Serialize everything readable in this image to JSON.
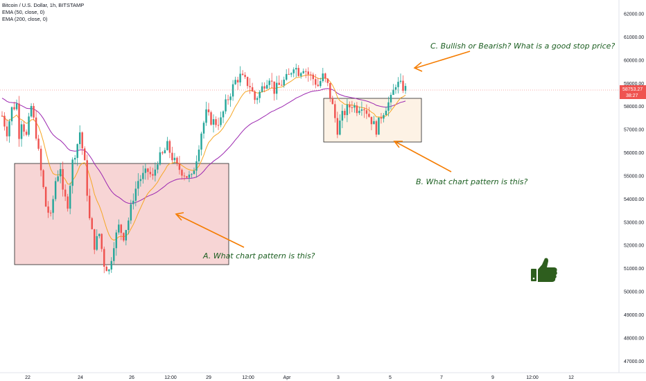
{
  "legend": {
    "title": "Bitcoin / U.S. Dollar, 1h, BITSTAMP",
    "ema50": "EMA (50, close, 0)",
    "ema200": "EMA (200, close, 0)"
  },
  "annotations": {
    "a": "A.  What chart pattern is this?",
    "b": "B.  What chart pattern is this?",
    "c": "C.  Bullish or Bearish?  What is a good stop price?"
  },
  "price_tag": {
    "price": "58753.27",
    "countdown": "38:27"
  },
  "icons": [
    "thumbs-up-icon"
  ],
  "colors": {
    "up": "#26a69a",
    "down": "#ef5350",
    "ema50": "#f6a623",
    "ema200": "#9c27b0",
    "box_a": "#f4c7c7",
    "box_b": "#fdf0e0",
    "arrow": "#f57c00",
    "note": "#1b5e20",
    "thumb": "#2e5e1e",
    "price_line": "#ef5350"
  },
  "chart_data": {
    "type": "candlestick",
    "title": "Bitcoin / U.S. Dollar, 1h, BITSTAMP",
    "y_ticks": [
      47000,
      48000,
      49000,
      50000,
      51000,
      52000,
      53000,
      54000,
      55000,
      56000,
      57000,
      58000,
      59000,
      60000,
      61000,
      62000
    ],
    "y_tick_labels": [
      "47000.00",
      "48000.00",
      "49000.00",
      "50000.00",
      "51000.00",
      "52000.00",
      "53000.00",
      "54000.00",
      "55000.00",
      "56000.00",
      "57000.00",
      "58000.00",
      "59000.00",
      "60000.00",
      "61000.00",
      "62000.00"
    ],
    "ylim": [
      46500,
      62600
    ],
    "x_tick_labels": [
      "22",
      "24",
      "26",
      "12:00",
      "29",
      "12:00",
      "Apr",
      "3",
      "5",
      "7",
      "9",
      "12:00",
      "12"
    ],
    "x_range_days": [
      "Mar 21 12:00",
      "Apr 12 20:00"
    ],
    "last_price": 58753.27,
    "price_path": [
      [
        0,
        57600
      ],
      [
        2,
        56900
      ],
      [
        4,
        57900
      ],
      [
        6,
        58100
      ],
      [
        7,
        56800
      ],
      [
        8,
        57400
      ],
      [
        10,
        56700
      ],
      [
        12,
        58000
      ],
      [
        14,
        56800
      ],
      [
        16,
        55200
      ],
      [
        18,
        53700
      ],
      [
        20,
        53200
      ],
      [
        22,
        54800
      ],
      [
        24,
        55400
      ],
      [
        25,
        54200
      ],
      [
        27,
        53800
      ],
      [
        29,
        55600
      ],
      [
        31,
        56400
      ],
      [
        32,
        56900
      ],
      [
        34,
        55500
      ],
      [
        36,
        53100
      ],
      [
        38,
        52000
      ],
      [
        40,
        52500
      ],
      [
        42,
        51200
      ],
      [
        44,
        50900
      ],
      [
        46,
        52100
      ],
      [
        48,
        52800
      ],
      [
        50,
        52400
      ],
      [
        52,
        53100
      ],
      [
        54,
        54100
      ],
      [
        56,
        54800
      ],
      [
        58,
        55000
      ],
      [
        60,
        55200
      ],
      [
        62,
        54900
      ],
      [
        64,
        55700
      ],
      [
        66,
        55900
      ],
      [
        68,
        56300
      ],
      [
        70,
        55800
      ],
      [
        72,
        55400
      ],
      [
        74,
        55200
      ],
      [
        76,
        55000
      ],
      [
        78,
        54900
      ],
      [
        80,
        55800
      ],
      [
        82,
        56900
      ],
      [
        84,
        57700
      ],
      [
        86,
        57400
      ],
      [
        88,
        57300
      ],
      [
        90,
        57400
      ],
      [
        92,
        58100
      ],
      [
        94,
        58600
      ],
      [
        96,
        59100
      ],
      [
        98,
        59300
      ],
      [
        100,
        59100
      ],
      [
        102,
        58900
      ],
      [
        104,
        58300
      ],
      [
        106,
        58600
      ],
      [
        108,
        59000
      ],
      [
        110,
        59300
      ],
      [
        112,
        58700
      ],
      [
        114,
        58900
      ],
      [
        116,
        59100
      ],
      [
        118,
        59300
      ],
      [
        120,
        59800
      ],
      [
        122,
        59500
      ],
      [
        124,
        59700
      ],
      [
        126,
        59400
      ],
      [
        128,
        59200
      ],
      [
        130,
        58900
      ],
      [
        132,
        59300
      ],
      [
        134,
        58900
      ],
      [
        136,
        58000
      ],
      [
        138,
        57000
      ],
      [
        140,
        57600
      ],
      [
        142,
        57900
      ],
      [
        144,
        58100
      ],
      [
        146,
        57900
      ],
      [
        148,
        58100
      ],
      [
        150,
        57800
      ],
      [
        152,
        57400
      ],
      [
        154,
        57000
      ],
      [
        156,
        57600
      ],
      [
        158,
        58000
      ],
      [
        160,
        58300
      ],
      [
        162,
        59000
      ],
      [
        164,
        58900
      ],
      [
        166,
        58753
      ]
    ]
  }
}
